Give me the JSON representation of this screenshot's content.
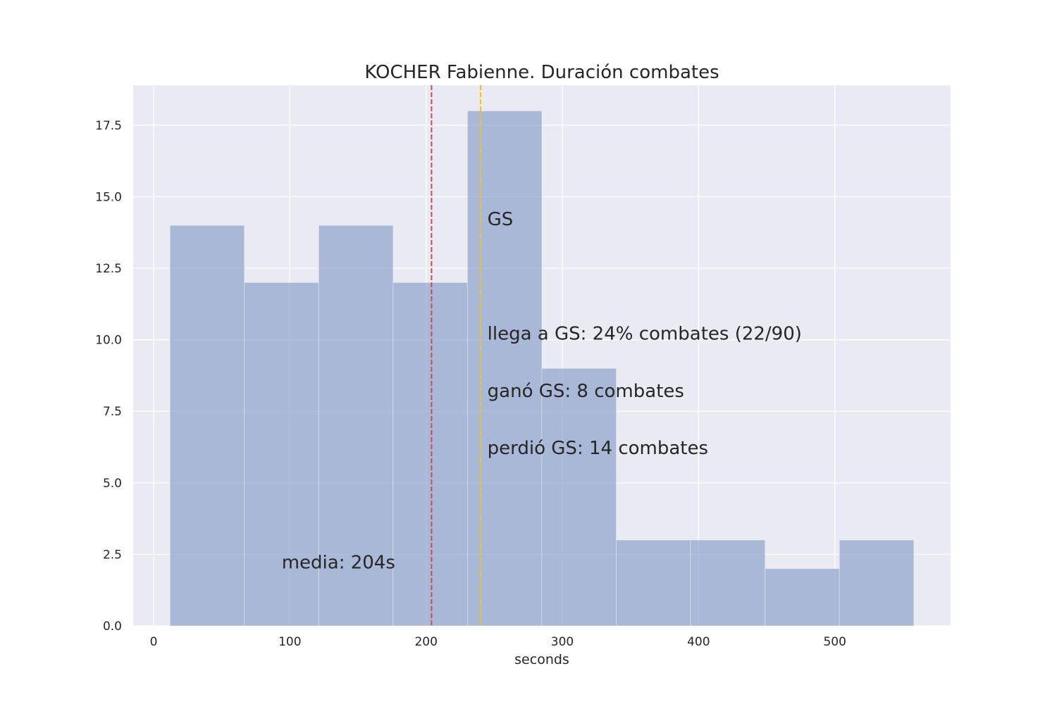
{
  "chart_data": {
    "type": "bar",
    "title": "KOCHER Fabienne. Duración combates",
    "xlabel": "seconds",
    "ylabel": "",
    "xlim": [
      -15,
      585
    ],
    "ylim": [
      0,
      18.9
    ],
    "xticks": [
      0,
      100,
      200,
      300,
      400,
      500
    ],
    "xtick_labels": [
      "0",
      "100",
      "200",
      "300",
      "400",
      "500"
    ],
    "yticks": [
      0,
      2.5,
      5,
      7.5,
      10,
      12.5,
      15,
      17.5
    ],
    "ytick_labels": [
      "0.0",
      "2.5",
      "5.0",
      "7.5",
      "10.0",
      "12.5",
      "15.0",
      "17.5"
    ],
    "grid": true,
    "bins": [
      {
        "x0": 12,
        "x1": 66.6,
        "count": 14
      },
      {
        "x0": 66.6,
        "x1": 121.2,
        "count": 12
      },
      {
        "x0": 121.2,
        "x1": 175.8,
        "count": 14
      },
      {
        "x0": 175.8,
        "x1": 230.4,
        "count": 12
      },
      {
        "x0": 230.4,
        "x1": 285,
        "count": 18
      },
      {
        "x0": 285,
        "x1": 339.6,
        "count": 9
      },
      {
        "x0": 339.6,
        "x1": 394.2,
        "count": 3
      },
      {
        "x0": 394.2,
        "x1": 448.8,
        "count": 3
      },
      {
        "x0": 448.8,
        "x1": 503.4,
        "count": 2
      },
      {
        "x0": 503.4,
        "x1": 558,
        "count": 3
      }
    ],
    "vlines": [
      {
        "name": "media",
        "x": 204,
        "color": "#c44e52"
      },
      {
        "name": "gs",
        "x": 240,
        "color": "#f5c400"
      }
    ],
    "annotations": [
      {
        "text": "GS",
        "x": 245,
        "y": 14.0,
        "color": "#262626"
      },
      {
        "text": "llega a GS: 24% combates (22/90)",
        "x": 245,
        "y": 10.0,
        "color": "#262626"
      },
      {
        "text": "ganó GS: 8 combates",
        "x": 245,
        "y": 8.0,
        "color": "#262626"
      },
      {
        "text": "perdió GS: 14 combates",
        "x": 245,
        "y": 6.0,
        "color": "#262626"
      },
      {
        "text": "media: 204s",
        "x": 94,
        "y": 2.0,
        "color": "#c44e52"
      }
    ],
    "colors": {
      "bar": "#8da2cb",
      "plot_background": "#eaeaf2",
      "grid": "#ffffff"
    }
  }
}
